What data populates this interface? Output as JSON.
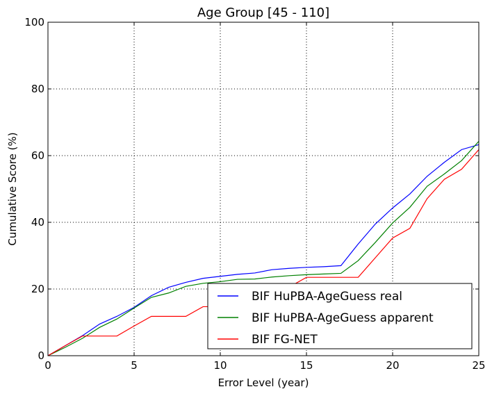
{
  "chart_data": {
    "type": "line",
    "title": "Age Group [45 - 110]",
    "xlabel": "Error Level (year)",
    "ylabel": "Cumulative Score (%)",
    "xlim": [
      0,
      25
    ],
    "ylim": [
      0,
      100
    ],
    "xticks": [
      0,
      5,
      10,
      15,
      20,
      25
    ],
    "yticks": [
      0,
      20,
      40,
      60,
      80,
      100
    ],
    "grid": true,
    "legend_position": "lower-right",
    "x": [
      0,
      1,
      2,
      3,
      4,
      5,
      6,
      7,
      8,
      9,
      10,
      11,
      12,
      13,
      14,
      15,
      16,
      17,
      18,
      19,
      20,
      21,
      22,
      23,
      24,
      25
    ],
    "series": [
      {
        "name": "BIF HuPBA-AgeGuess real",
        "color": "#0000ff",
        "values": [
          0,
          3,
          6,
          9.5,
          11.8,
          14.5,
          18,
          20.5,
          22,
          23.2,
          23.8,
          24.4,
          24.8,
          25.8,
          26.2,
          26.5,
          26.7,
          27,
          33.5,
          39.5,
          44.3,
          48.5,
          53.8,
          58,
          61.8,
          63.3
        ]
      },
      {
        "name": "BIF HuPBA-AgeGuess apparent",
        "color": "#008000",
        "values": [
          0,
          2.5,
          5.2,
          8.5,
          11,
          14.3,
          17.5,
          18.8,
          20.8,
          21.7,
          22.2,
          22.9,
          23,
          23.6,
          24,
          24.3,
          24.5,
          24.7,
          28.5,
          34,
          39.8,
          44.5,
          50.8,
          54.5,
          58.5,
          64.3
        ]
      },
      {
        "name": "BIF FG-NET",
        "color": "#ff0000",
        "values": [
          0,
          3,
          5.9,
          5.9,
          5.9,
          8.9,
          11.8,
          11.8,
          11.8,
          14.7,
          14.7,
          17.6,
          17.6,
          20.6,
          20.6,
          23.5,
          23.5,
          23.5,
          23.5,
          29.4,
          35.3,
          38.2,
          47.1,
          52.9,
          55.9,
          61.8
        ]
      }
    ]
  }
}
